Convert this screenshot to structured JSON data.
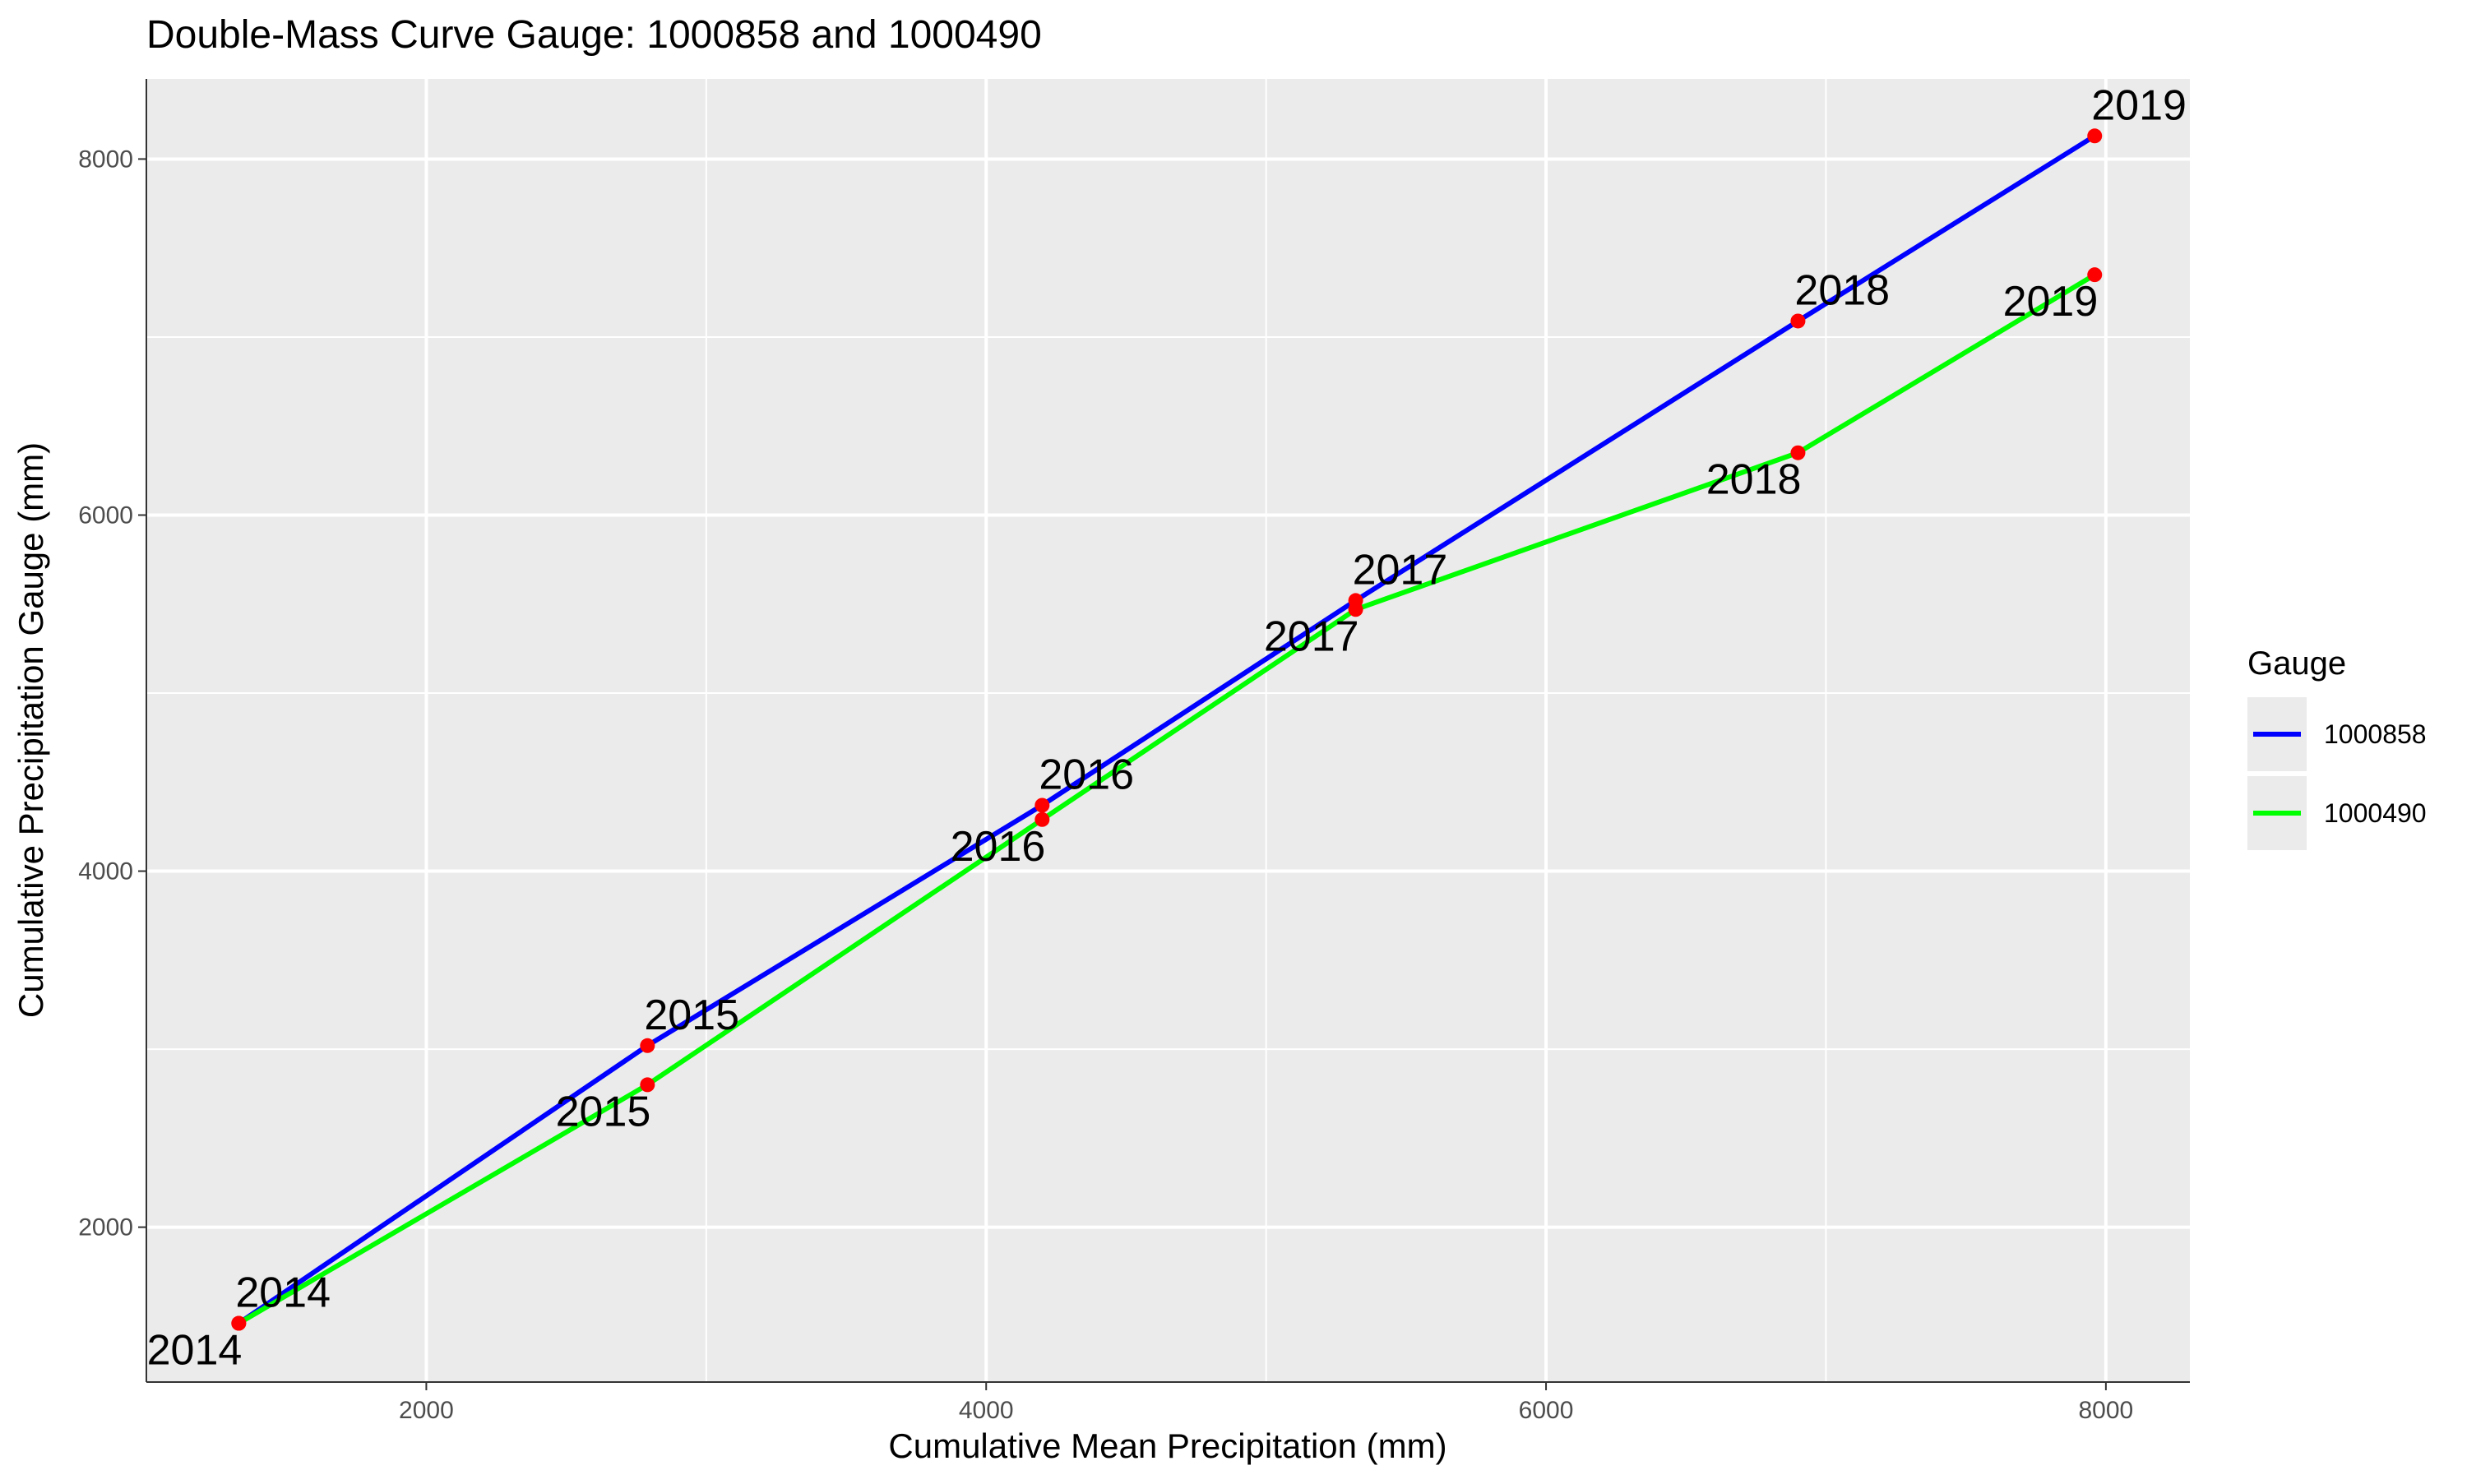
{
  "chart_data": {
    "type": "line",
    "title": "Double-Mass Curve Gauge: 1000858 and 1000490",
    "xlabel": "Cumulative Mean Precipitation (mm)",
    "ylabel": "Cumulative Precipitation Gauge (mm)",
    "xlim": [
      1000,
      8300
    ],
    "ylim": [
      1130,
      8450
    ],
    "xticks": [
      2000,
      4000,
      6000,
      8000
    ],
    "yticks": [
      2000,
      4000,
      6000,
      8000
    ],
    "grid": true,
    "legend": {
      "title": "Gauge",
      "position": "right"
    },
    "series": [
      {
        "name": "1000858",
        "color": "#0000FF",
        "points": [
          {
            "x": 1330,
            "y": 1460,
            "label": "2014"
          },
          {
            "x": 2790,
            "y": 3020,
            "label": "2015"
          },
          {
            "x": 4200,
            "y": 4370,
            "label": "2016"
          },
          {
            "x": 5320,
            "y": 5520,
            "label": "2017"
          },
          {
            "x": 6900,
            "y": 7090,
            "label": "2018"
          },
          {
            "x": 7960,
            "y": 8130,
            "label": "2019"
          }
        ]
      },
      {
        "name": "1000490",
        "color": "#00FF00",
        "points": [
          {
            "x": 1330,
            "y": 1460,
            "label": "2014"
          },
          {
            "x": 2790,
            "y": 2800,
            "label": "2015"
          },
          {
            "x": 4200,
            "y": 4290,
            "label": "2016"
          },
          {
            "x": 5320,
            "y": 5470,
            "label": "2017"
          },
          {
            "x": 6900,
            "y": 6350,
            "label": "2018"
          },
          {
            "x": 7960,
            "y": 7350,
            "label": "2019"
          }
        ]
      }
    ],
    "point_color": "#FF0000"
  }
}
